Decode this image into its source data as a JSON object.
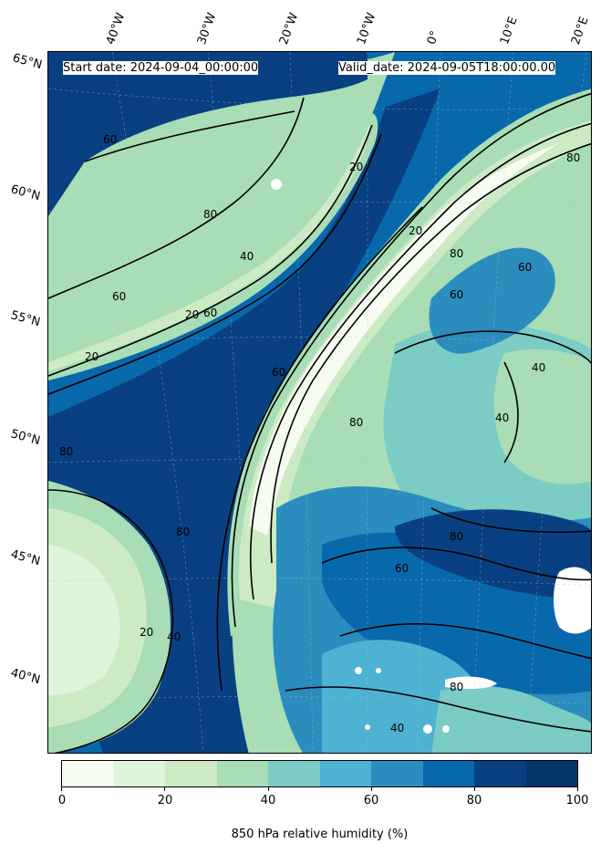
{
  "header": {
    "start_date": "Start date: 2024-09-04_00:00:00",
    "valid_date": "Valid_date: 2024-09-05T18:00:00.00"
  },
  "axes": {
    "lon_labels": [
      "40°W",
      "30°W",
      "20°W",
      "10°W",
      "0°",
      "10°E",
      "20°E"
    ],
    "lat_labels": [
      "65°N",
      "60°N",
      "55°N",
      "50°N",
      "45°N",
      "40°N"
    ]
  },
  "contour_labels": [
    "20",
    "40",
    "60",
    "80"
  ],
  "colorbar": {
    "label": "850 hPa relative humidity (%)",
    "ticks": [
      "0",
      "20",
      "40",
      "60",
      "80",
      "100"
    ],
    "colors": [
      "#f7fcf0",
      "#e0f3db",
      "#ccebc5",
      "#a8ddb5",
      "#7bccc4",
      "#4eb3d3",
      "#2b8cbe",
      "#0868ac",
      "#084081",
      "#06356b"
    ],
    "range": [
      0,
      100
    ]
  }
}
